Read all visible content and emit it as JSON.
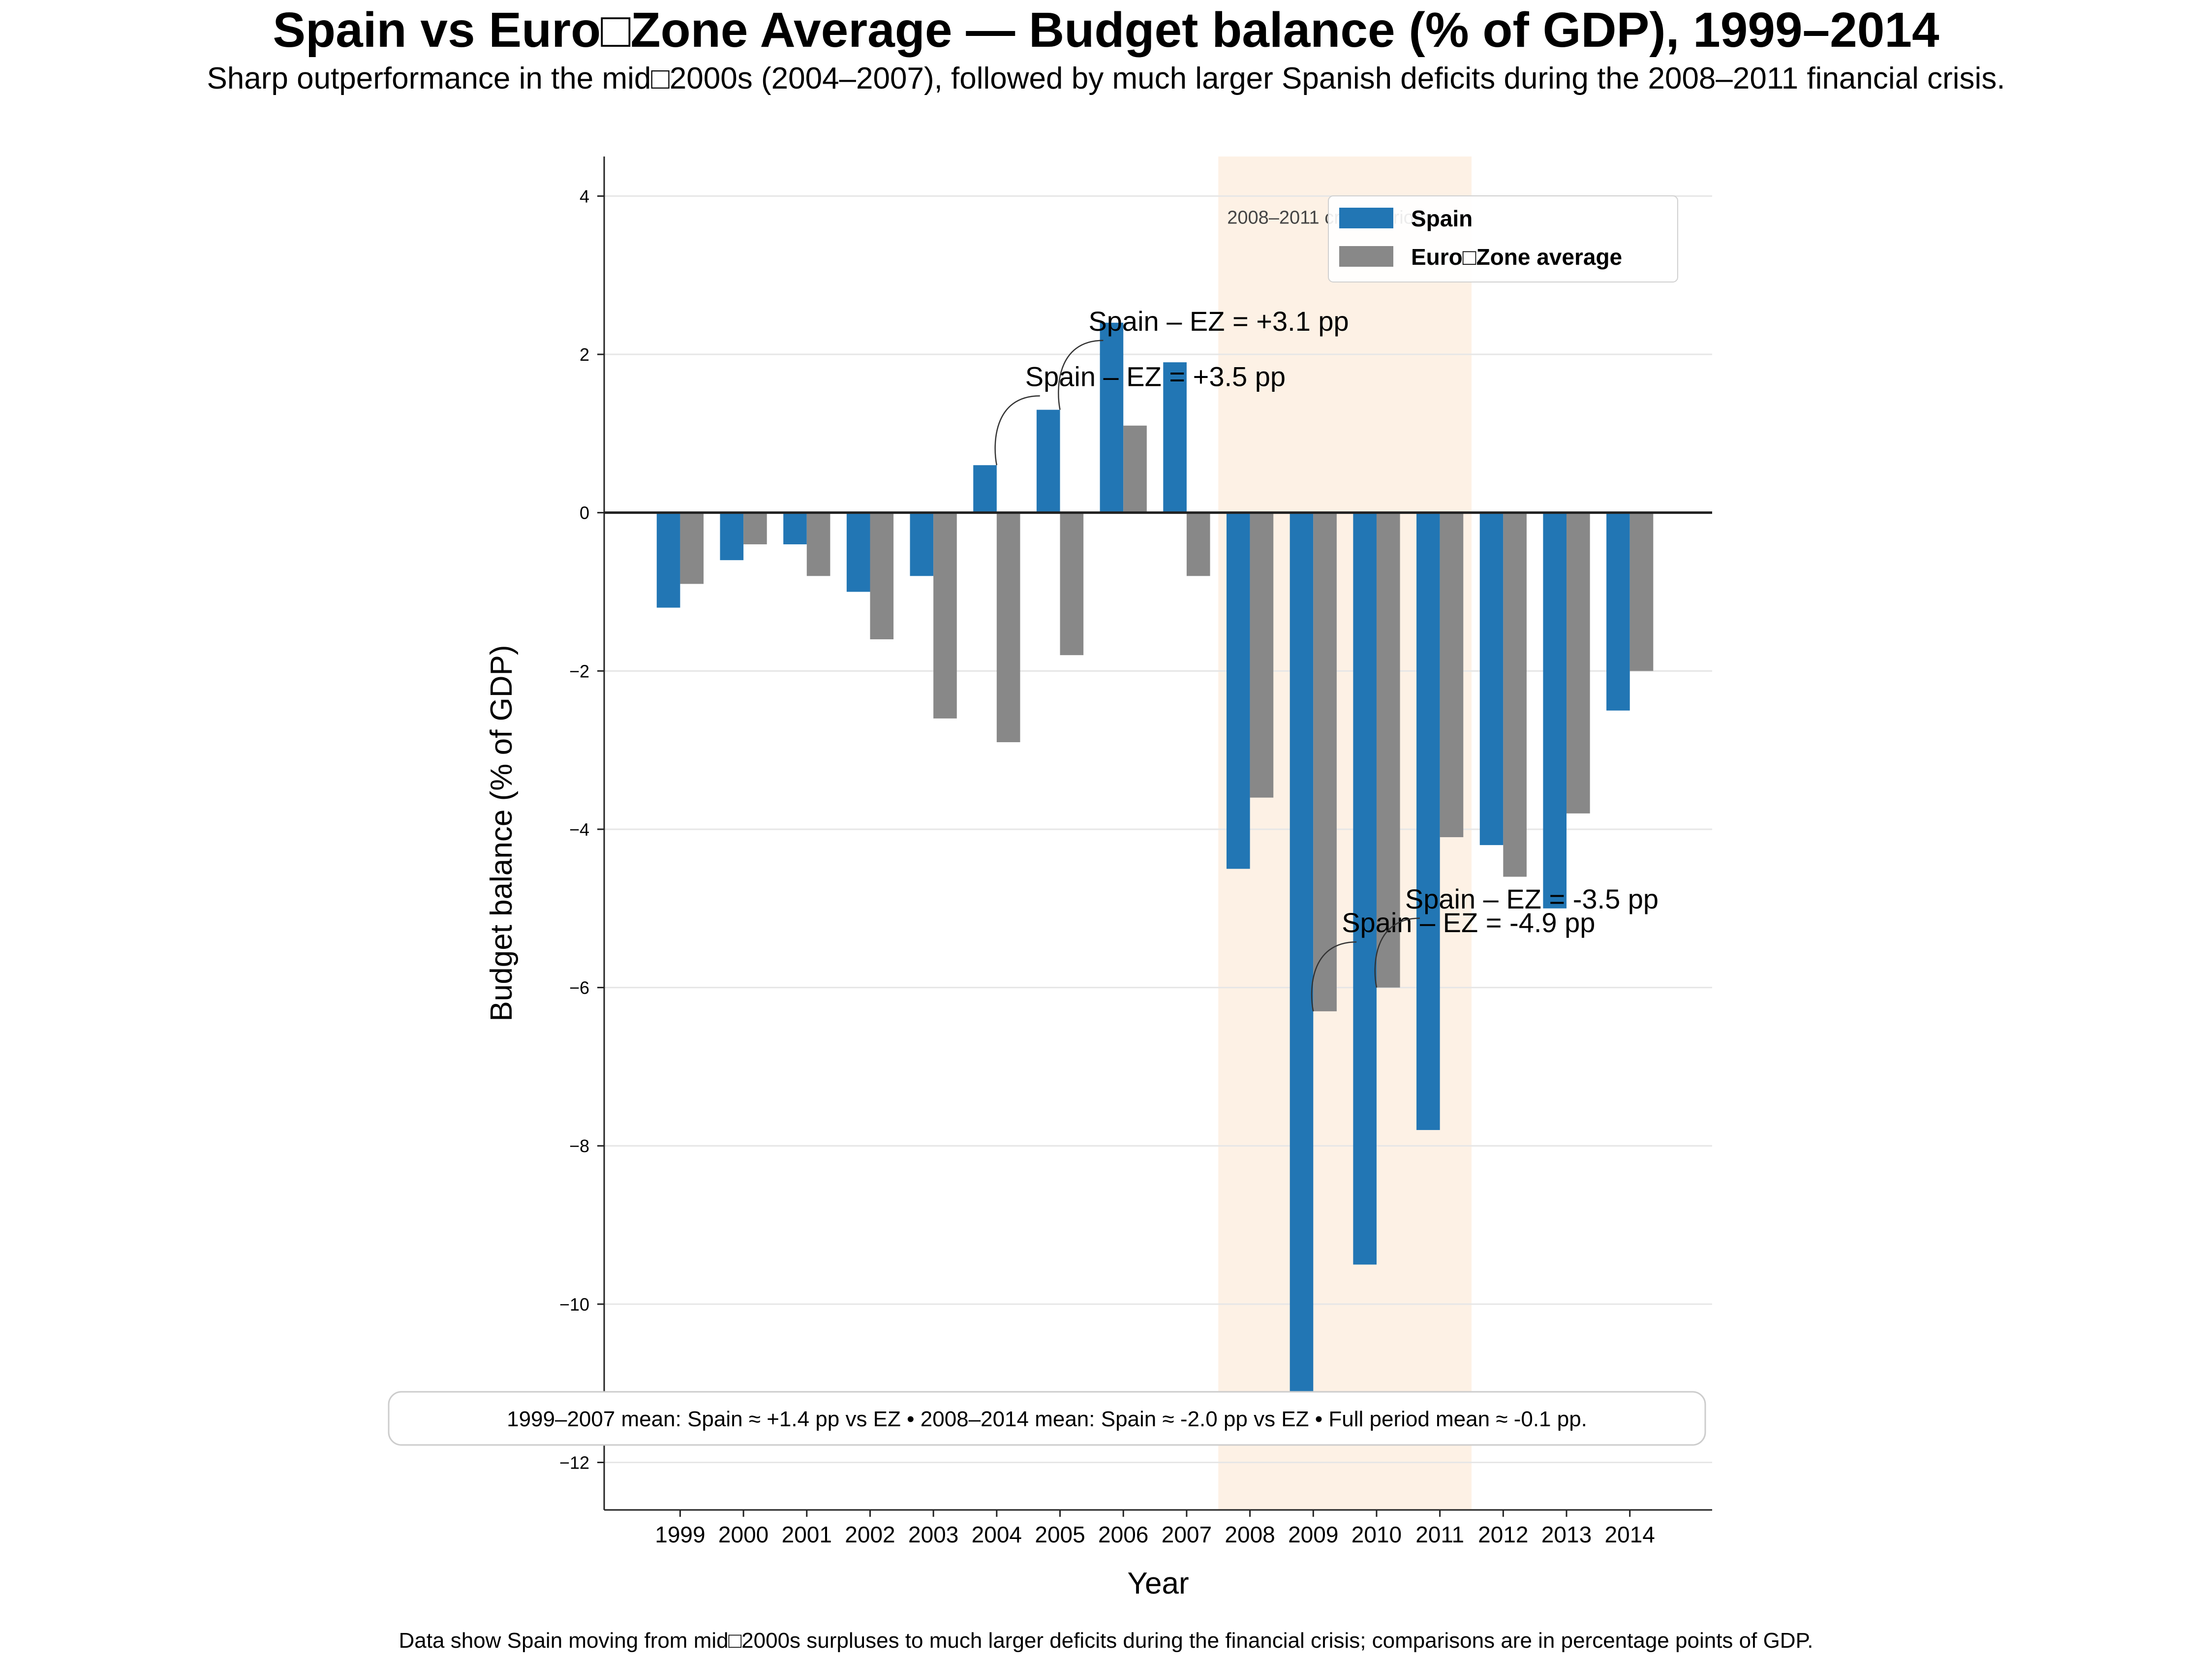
{
  "title": "Spain vs Euro□Zone Average — Budget balance (% of GDP), 1999–2014",
  "subtitle": "Sharp outperformance in the mid□2000s (2004–2007), followed by much larger Spanish deficits during the 2008–2011 financial crisis.",
  "footnote": "Data show Spain moving from mid□2000s surpluses to much larger deficits during the financial crisis; comparisons are in percentage points of GDP.",
  "summary_box": "1999–2007 mean: Spain ≈ +1.4 pp vs EZ • 2008–2014 mean: Spain ≈ -2.0 pp vs EZ • Full period mean ≈ -0.1 pp.",
  "crisis_band_label": "2008–2011 crisis period",
  "colors": {
    "spain": "#2276b4",
    "eurozone": "#888888",
    "crisis_band": "#fdf1e5",
    "zero_line": "#222222",
    "grid": "#e6e6e6"
  },
  "chart_data": {
    "type": "bar",
    "xlabel": "Year",
    "ylabel": "Budget balance (% of GDP)",
    "ylim": [
      -12.6,
      4.5
    ],
    "yticks": [
      4,
      2,
      0,
      -2,
      -4,
      -6,
      -8,
      -10,
      -12
    ],
    "ytick_labels": [
      "4",
      "2",
      "0",
      "−2",
      "−4",
      "−6",
      "−8",
      "−10",
      "−12"
    ],
    "grid": "horizontal",
    "legend_position": "top-right",
    "categories": [
      "1999",
      "2000",
      "2001",
      "2002",
      "2003",
      "2004",
      "2005",
      "2006",
      "2007",
      "2008",
      "2009",
      "2010",
      "2011",
      "2012",
      "2013",
      "2014"
    ],
    "series": [
      {
        "name": "Spain",
        "color": "#2276b4",
        "values": [
          -1.2,
          -0.6,
          -0.4,
          -1.0,
          -0.8,
          0.6,
          1.3,
          2.4,
          1.9,
          -4.5,
          -11.2,
          -9.5,
          -7.8,
          -4.2,
          -5.0,
          -2.5
        ]
      },
      {
        "name": "Euro□Zone average",
        "color": "#888888",
        "values": [
          -0.9,
          -0.4,
          -0.8,
          -1.6,
          -2.6,
          -2.9,
          -1.8,
          1.1,
          -0.8,
          -3.6,
          -6.3,
          -6.0,
          -4.1,
          -4.6,
          -3.8,
          -2.0
        ]
      }
    ],
    "shaded_region": {
      "from": "2008",
      "to": "2011"
    },
    "annotations": [
      {
        "text": "Spain – EZ = +3.5 pp",
        "category": "2004",
        "point_value": 0.6,
        "label_category": "2005",
        "label_value": 1.6
      },
      {
        "text": "Spain – EZ = +3.1 pp",
        "category": "2005",
        "point_value": 1.3,
        "label_category": "2006",
        "label_value": 2.3
      },
      {
        "text": "Spain – EZ = -4.9 pp",
        "category": "2009",
        "point_value": -6.3,
        "label_category": "2010",
        "label_value": -5.3
      },
      {
        "text": "Spain – EZ = -3.5 pp",
        "category": "2010",
        "point_value": -6.0,
        "label_category": "2011",
        "label_value": -5.0
      }
    ]
  }
}
